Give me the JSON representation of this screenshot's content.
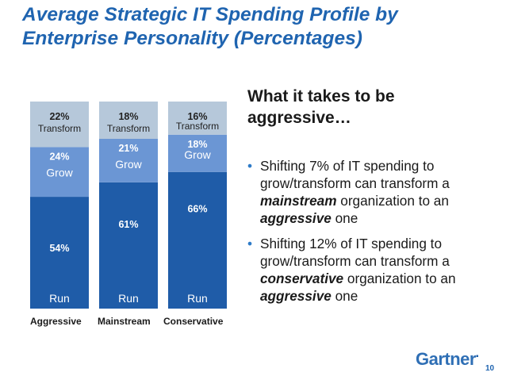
{
  "title": {
    "line1": "Average Strategic IT Spending Profile by",
    "line2": "Enterprise Personality (Percentages)"
  },
  "chart_data": {
    "type": "bar",
    "stacked": true,
    "categories": [
      "Aggressive",
      "Mainstream",
      "Conservative"
    ],
    "series": [
      {
        "name": "Run",
        "values": [
          54,
          61,
          66
        ],
        "labels": [
          "54%",
          "61%",
          "66%"
        ],
        "color": "#1f5ca8",
        "label_color": "#ffffff"
      },
      {
        "name": "Grow",
        "values": [
          24,
          21,
          18
        ],
        "labels": [
          "24%",
          "21%",
          "18%"
        ],
        "color": "#6b96d4",
        "label_color": "#ffffff"
      },
      {
        "name": "Transform",
        "values": [
          22,
          18,
          16
        ],
        "labels": [
          "22%",
          "18%",
          "16%"
        ],
        "color": "#b6c8da",
        "label_color": "#222222"
      }
    ],
    "title": "",
    "xlabel": "",
    "ylabel": "",
    "ylim": [
      0,
      100
    ],
    "grid": false,
    "legend": "none"
  },
  "right_panel": {
    "heading_line1": "What it takes to be",
    "heading_line2": "aggressive…",
    "bullet_symbol": "•",
    "bullets": [
      {
        "part1": "Shifting 7% of IT spending to grow/transform can transform a ",
        "emph": "mainstream",
        "part2": " organization to an ",
        "emph2": "aggressive",
        "part3": " one"
      },
      {
        "part1": "Shifting 12% of IT spending to grow/transform can transform a ",
        "emph": "conservative",
        "part2": " organization to an ",
        "emph2": "aggressive",
        "part3": " one"
      }
    ]
  },
  "footer": {
    "logo": "Gartner",
    "logo_mark": "▪",
    "page_number": "10"
  },
  "colors": {
    "title": "#1f64b0",
    "run": "#1f5ca8",
    "grow": "#6b96d4",
    "transform": "#b6c8da",
    "bullet": "#2e7bc8"
  }
}
